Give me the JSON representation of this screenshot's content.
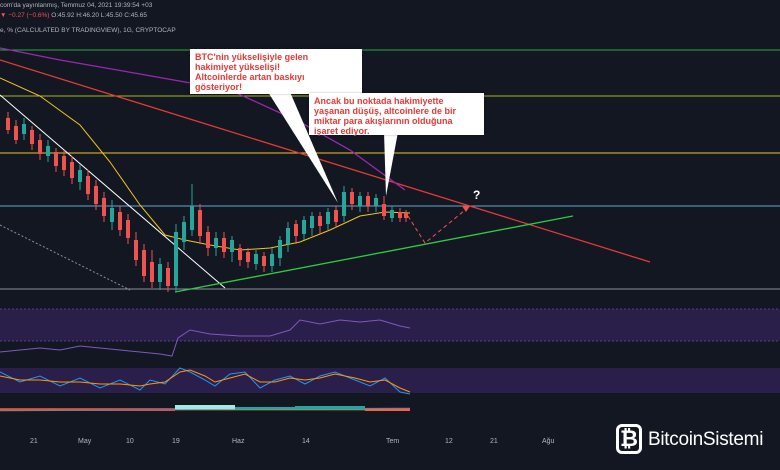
{
  "header": {
    "line1_prefix": "com'da yayınlanmış, Temmuz 04, 2021 19:39:54 +03",
    "line2_prefix": "",
    "line2_change": "−0.27 (−0.6%)",
    "line2_ohlc": "O:45.92 H:46.20 L:45.50 C:45.65",
    "line3": "e, % (CALCULATED BY TRADINGVIEW), 1G, CRYPTOCAP"
  },
  "callouts": [
    {
      "lines": [
        "BTC'nin yükselişiyle gelen",
        "hakimiyet yükselişi!",
        "Altcoinlerde artan baskıyı",
        "gösteriyor!"
      ]
    },
    {
      "lines": [
        "Ancak bu noktada hakimiyette",
        "yaşanan düşüş, altcoinlere de bir",
        "miktar para akışlarının olduğuna",
        "işaret ediyor."
      ]
    }
  ],
  "question_mark": "?",
  "x_axis": [
    "21",
    "May",
    "10",
    "19",
    "Haz",
    "14",
    "Tem",
    "12",
    "21",
    "Ağu"
  ],
  "logo": {
    "mark": "₿",
    "text": "BitcoinSistemi"
  },
  "colors": {
    "background": "#131722",
    "up": "#26a69a",
    "down": "#ef5350",
    "ma_yellow": "#f5c518",
    "trend_red": "#e53935",
    "trend_green": "#2ecc40",
    "purple": "#9c27b0"
  },
  "icons": {
    "logo": "bitcoin-b-icon"
  }
}
